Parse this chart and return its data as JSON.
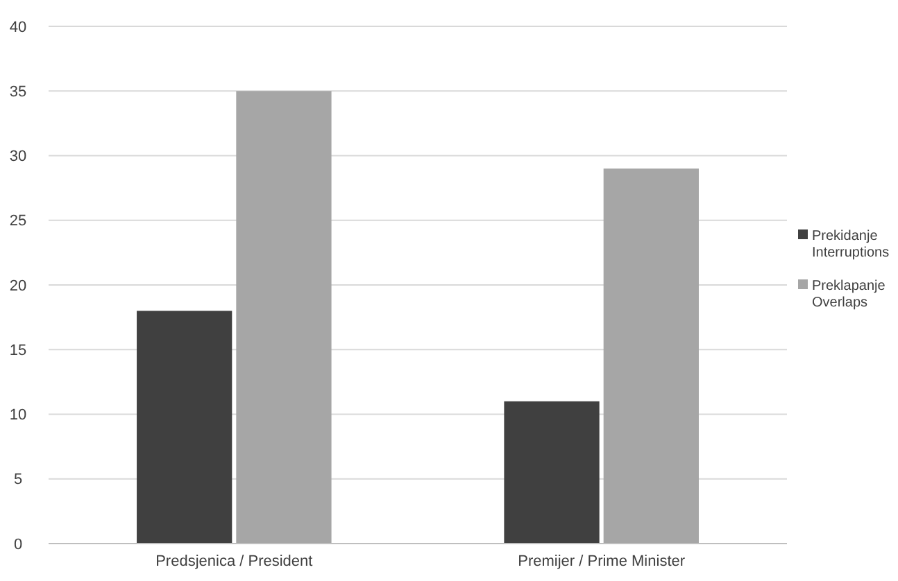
{
  "chart_data": {
    "type": "bar",
    "categories": [
      "Predsjenica / President",
      "Premijer / Prime Minister"
    ],
    "series": [
      {
        "name": "Prekidanje\nInterruptions",
        "color": "#404040",
        "values": [
          18,
          11
        ]
      },
      {
        "name": "Preklapanje\nOverlaps",
        "color": "#a6a6a6",
        "values": [
          35,
          29
        ]
      }
    ],
    "ylim": [
      0,
      40
    ],
    "yticks": [
      0,
      5,
      10,
      15,
      20,
      25,
      30,
      35,
      40
    ],
    "grid": "y",
    "legend": "right"
  }
}
